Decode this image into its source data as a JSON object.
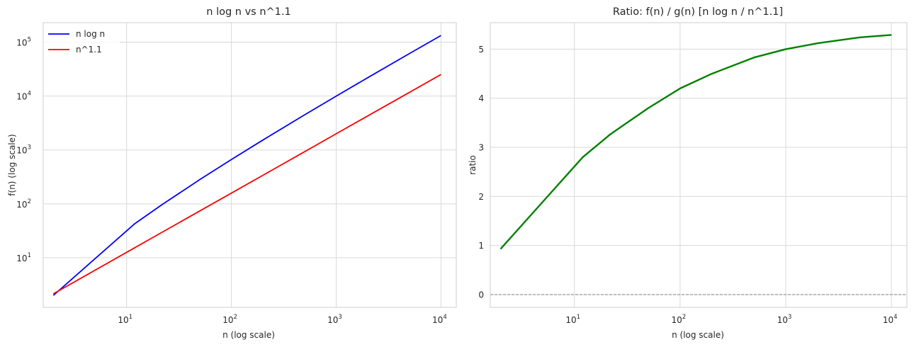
{
  "chart_data": [
    {
      "type": "line",
      "title": "n log n vs n^1.1",
      "xlabel": "n (log scale)",
      "ylabel": "f(n) (log scale)",
      "xscale": "log",
      "yscale": "log",
      "xlim": [
        1.6,
        14000
      ],
      "ylim": [
        1.2,
        230000
      ],
      "xticks": [
        10,
        100,
        1000,
        10000
      ],
      "xtick_labels": [
        {
          "base": "10",
          "exp": "1"
        },
        {
          "base": "10",
          "exp": "2"
        },
        {
          "base": "10",
          "exp": "3"
        },
        {
          "base": "10",
          "exp": "4"
        }
      ],
      "yticks": [
        10,
        100,
        1000,
        10000,
        100000
      ],
      "ytick_labels": [
        {
          "base": "10",
          "exp": "1"
        },
        {
          "base": "10",
          "exp": "2"
        },
        {
          "base": "10",
          "exp": "3"
        },
        {
          "base": "10",
          "exp": "4"
        },
        {
          "base": "10",
          "exp": "5"
        }
      ],
      "grid": true,
      "legend": "top-left",
      "series": [
        {
          "name": "n log n",
          "color": "#0000ff",
          "x": [
            2,
            12,
            22,
            50,
            100,
            200,
            500,
            1000,
            2000,
            5000,
            10000
          ],
          "y": [
            2,
            43,
            98,
            282,
            664,
            1529,
            4483,
            9966,
            21932,
            61439,
            132877
          ]
        },
        {
          "name": "n^1.1",
          "color": "#ff0000",
          "x": [
            2,
            12,
            22,
            50,
            100,
            200,
            500,
            1000,
            2000,
            5000,
            10000
          ],
          "y": [
            2.14,
            15.4,
            30,
            74,
            158,
            339,
            928,
            1995,
            4280,
            11700,
            25119
          ]
        }
      ]
    },
    {
      "type": "line",
      "title": "Ratio: f(n) / g(n)   [n log n / n^1.1]",
      "xlabel": "n (log scale)",
      "ylabel": "ratio",
      "xscale": "log",
      "xlim": [
        1.6,
        14000
      ],
      "ylim": [
        -0.26,
        5.54
      ],
      "xticks": [
        10,
        100,
        1000,
        10000
      ],
      "xtick_labels": [
        {
          "base": "10",
          "exp": "1"
        },
        {
          "base": "10",
          "exp": "2"
        },
        {
          "base": "10",
          "exp": "3"
        },
        {
          "base": "10",
          "exp": "4"
        }
      ],
      "yticks": [
        0,
        1,
        2,
        3,
        4,
        5
      ],
      "ytick_labels": [
        "0",
        "1",
        "2",
        "3",
        "4",
        "5"
      ],
      "grid": true,
      "reference_line": {
        "y": 0,
        "color": "#808080",
        "style": "dashed"
      },
      "series": [
        {
          "color": "#008000",
          "x": [
            2,
            12,
            22,
            50,
            100,
            200,
            500,
            1000,
            2000,
            5000,
            10000
          ],
          "y": [
            0.93,
            2.8,
            3.27,
            3.8,
            4.2,
            4.5,
            4.83,
            5.0,
            5.12,
            5.24,
            5.29
          ]
        }
      ]
    }
  ]
}
